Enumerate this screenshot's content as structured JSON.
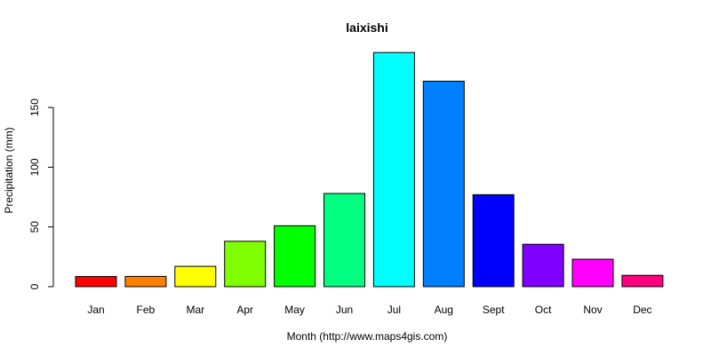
{
  "chart_data": {
    "type": "bar",
    "title": "laixishi",
    "xlabel": "Month (http://www.maps4gis.com)",
    "ylabel": "Precipitation (mm)",
    "categories": [
      "Jan",
      "Feb",
      "Mar",
      "Apr",
      "May",
      "Jun",
      "Jul",
      "Aug",
      "Sept",
      "Oct",
      "Nov",
      "Dec"
    ],
    "values": [
      8.5,
      8.6,
      17,
      38,
      51,
      78,
      196,
      172,
      77,
      35.5,
      23,
      9.5
    ],
    "colors": [
      "#FF0000",
      "#FF8000",
      "#FFFF00",
      "#80FF00",
      "#00FF00",
      "#00FF80",
      "#00FFFF",
      "#0080FF",
      "#0000FF",
      "#8000FF",
      "#FF00FF",
      "#FF0080"
    ],
    "ylim": [
      0,
      196
    ],
    "yticks": [
      0,
      50,
      100,
      150
    ],
    "grid": false,
    "legend": "none"
  }
}
